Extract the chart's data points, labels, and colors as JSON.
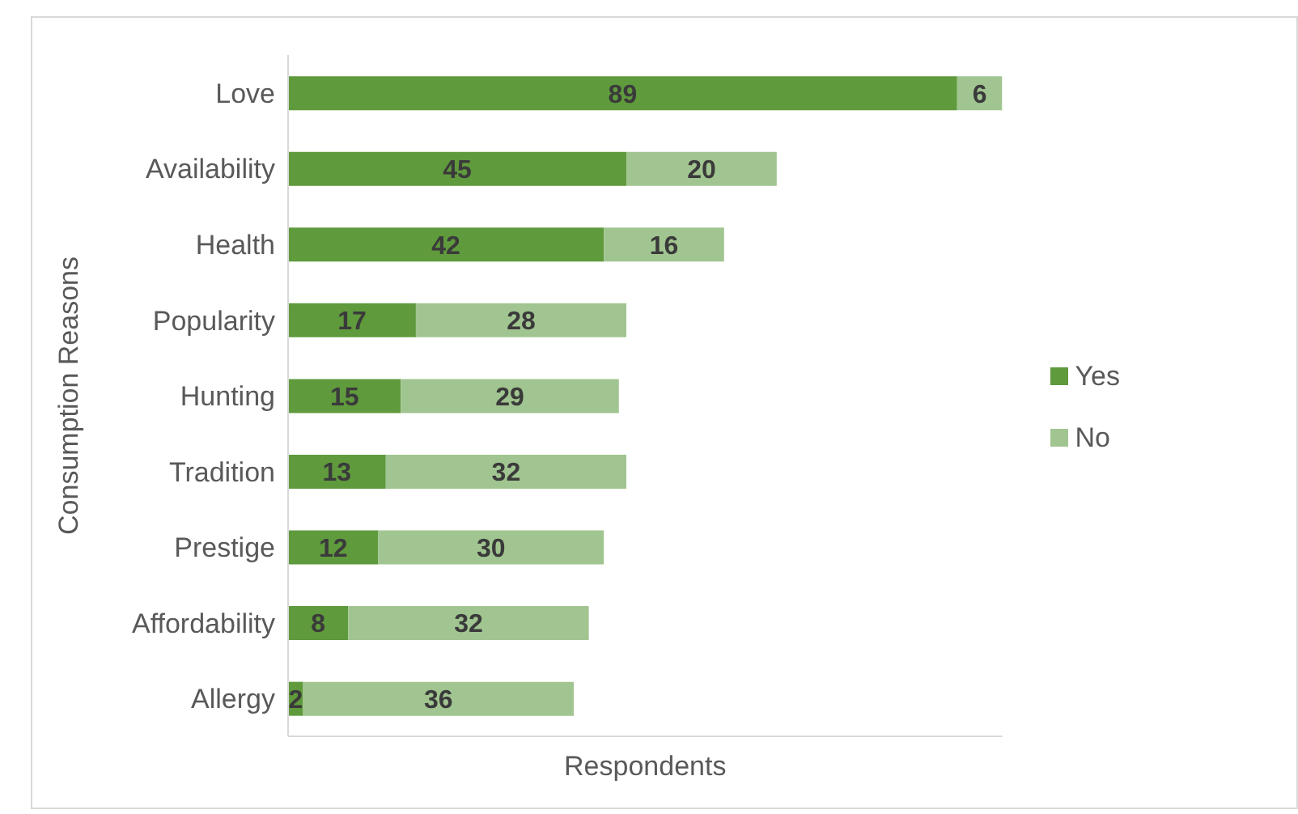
{
  "chart_data": {
    "type": "bar",
    "orientation": "horizontal",
    "stacked": true,
    "xlabel": "Respondents",
    "ylabel": "Consumption Reasons",
    "categories": [
      "Love",
      "Availability",
      "Health",
      "Popularity",
      "Hunting",
      "Tradition",
      "Prestige",
      "Affordability",
      "Allergy"
    ],
    "series": [
      {
        "name": "Yes",
        "color": "#5f9a3d",
        "values": [
          89,
          45,
          42,
          17,
          15,
          13,
          12,
          8,
          2
        ]
      },
      {
        "name": "No",
        "color": "#a1c590",
        "values": [
          6,
          20,
          16,
          28,
          29,
          32,
          30,
          32,
          36
        ]
      }
    ],
    "tick_labels": "y",
    "data_labels": true,
    "legend": "right"
  }
}
